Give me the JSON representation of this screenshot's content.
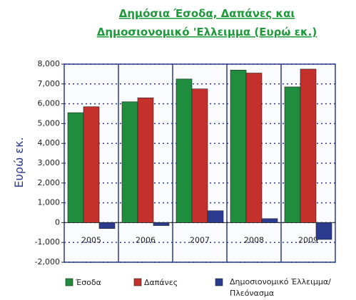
{
  "chart_data": {
    "type": "bar",
    "title": [
      "Δημόσια Έσοδα, Δαπάνες και",
      "Δημοσιονομικό 'Ελλειμμα (Ευρώ εκ.)"
    ],
    "y_label": "Ευρώ εκ.",
    "categories": [
      "2005",
      "2006",
      "2007",
      "2008",
      "2009"
    ],
    "series": [
      {
        "name": "Έσοδα",
        "color": "#1f8c3e",
        "values": [
          5550,
          6100,
          7250,
          7700,
          6850
        ]
      },
      {
        "name": "Δαπάνες",
        "color": "#c4302b",
        "values": [
          5850,
          6300,
          6750,
          7550,
          7750
        ]
      },
      {
        "name": "Δημοσιονομικό Έλλειμμα/Πλεόνασμα",
        "color": "#2b3b8f",
        "values": [
          -300,
          -150,
          600,
          200,
          -850
        ]
      }
    ],
    "ylim": [
      -2000,
      8000
    ],
    "yticks": [
      {
        "value": -2000,
        "label": "-2,000"
      },
      {
        "value": -1000,
        "label": "-1,000"
      },
      0,
      {
        "value": 1000,
        "label": "1,000"
      },
      {
        "value": 2000,
        "label": "2,000"
      },
      {
        "value": 3000,
        "label": "3,000"
      },
      {
        "value": 4000,
        "label": "4,000"
      },
      {
        "value": 5000,
        "label": "5,000"
      },
      {
        "value": 6000,
        "label": "6,000"
      },
      {
        "value": 7000,
        "label": "7,000"
      },
      {
        "value": 8000,
        "label": "8,000"
      }
    ],
    "grid": true
  }
}
